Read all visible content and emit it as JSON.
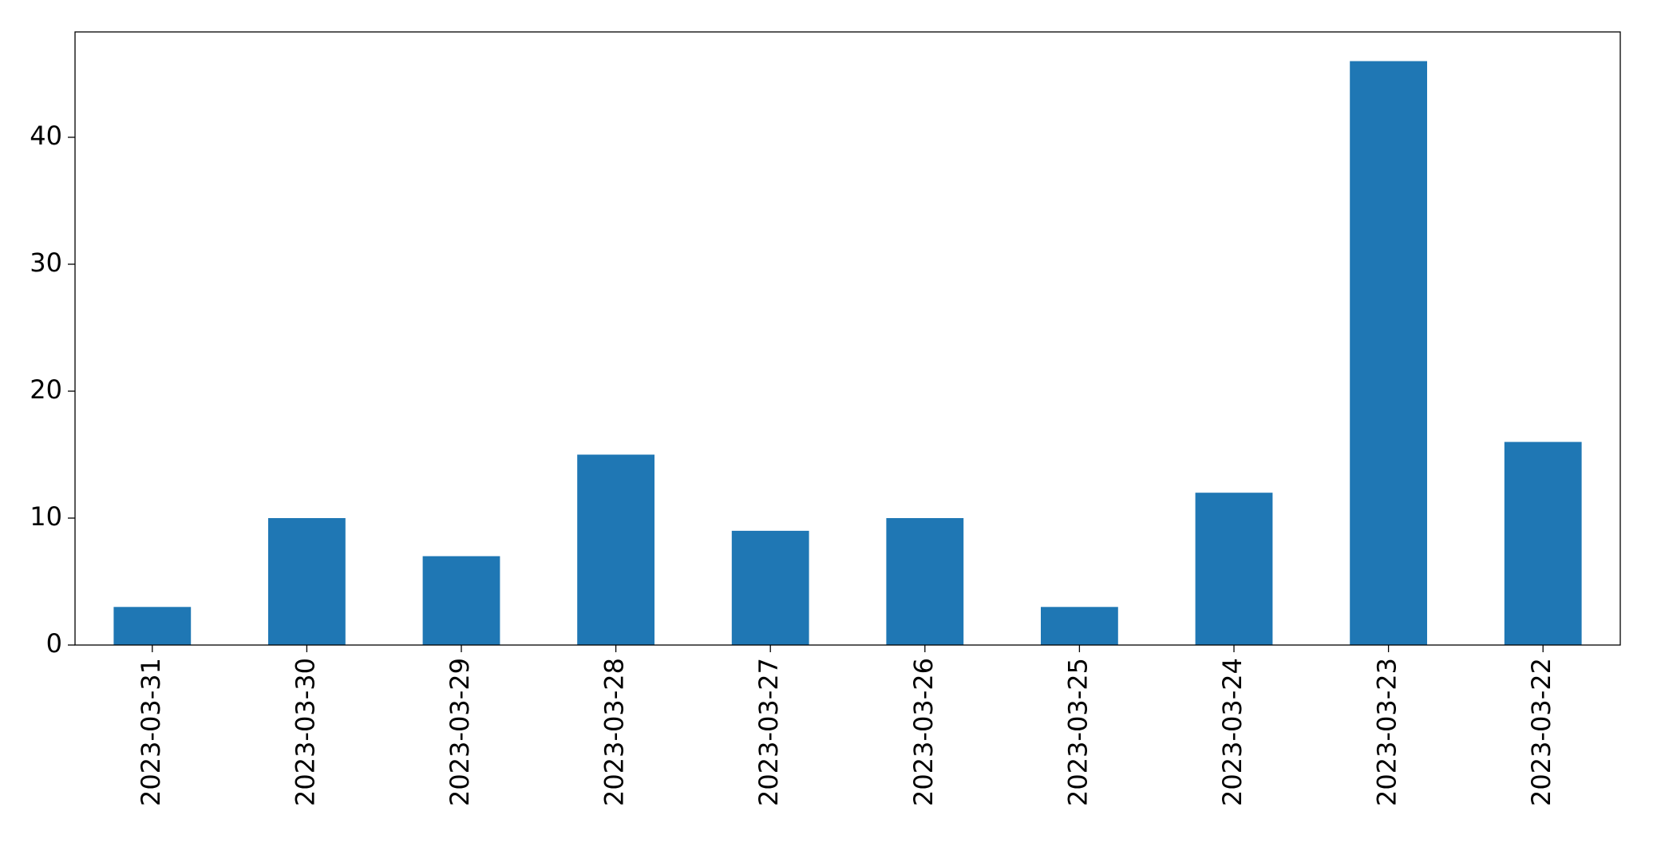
{
  "chart_data": {
    "type": "bar",
    "categories": [
      "2023-03-31",
      "2023-03-30",
      "2023-03-29",
      "2023-03-28",
      "2023-03-27",
      "2023-03-26",
      "2023-03-25",
      "2023-03-24",
      "2023-03-23",
      "2023-03-22"
    ],
    "values": [
      3,
      10,
      7,
      15,
      9,
      10,
      3,
      12,
      46,
      16
    ],
    "color": "#1f77b4",
    "ylim": [
      0,
      48.3
    ],
    "yticks": [
      0,
      10,
      20,
      30,
      40
    ],
    "grid": false
  }
}
